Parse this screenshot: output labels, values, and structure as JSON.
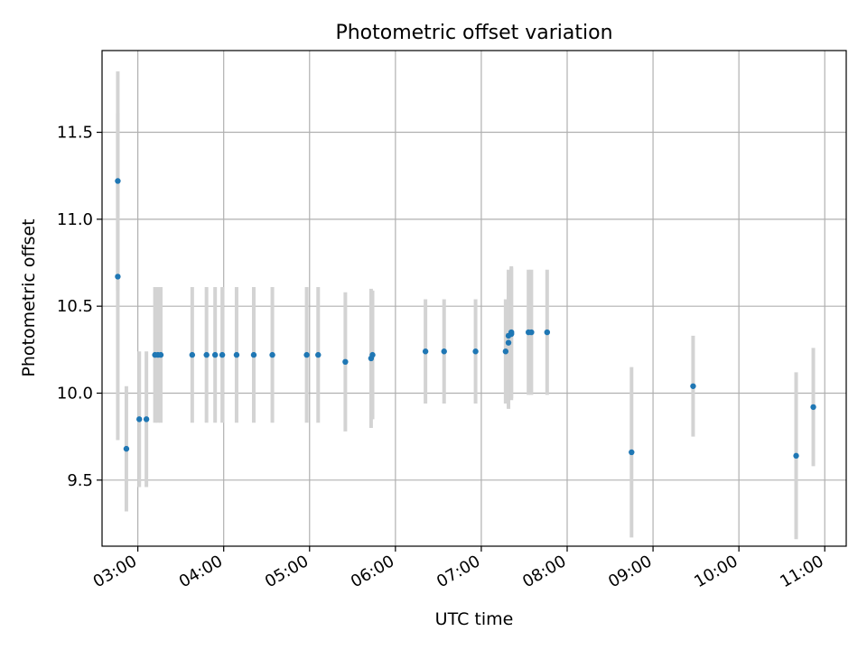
{
  "chart_data": {
    "type": "scatter",
    "title": "Photometric offset variation",
    "xlabel": "UTC time",
    "ylabel": "Photometric offset",
    "x_axis": "time",
    "xlim": [
      "02:35",
      "11:15"
    ],
    "ylim": [
      9.12,
      11.97
    ],
    "x_ticks": [
      "03:00",
      "04:00",
      "05:00",
      "06:00",
      "07:00",
      "08:00",
      "09:00",
      "10:00",
      "11:00"
    ],
    "y_ticks": [
      9.5,
      10.0,
      10.5,
      11.0,
      11.5
    ],
    "y_tick_labels": [
      "9.5",
      "10.0",
      "10.5",
      "11.0",
      "11.5"
    ],
    "grid": true,
    "colors": {
      "points": "#1f77b4",
      "errorbars": "#d3d3d3",
      "grid": "#b0b0b0"
    },
    "series": [
      {
        "points": [
          {
            "x": "02:46",
            "y": 11.22,
            "err": 0.63
          },
          {
            "x": "02:46",
            "y": 10.67,
            "err": 0.94
          },
          {
            "x": "02:52",
            "y": 9.68,
            "err": 0.36
          },
          {
            "x": "03:01",
            "y": 9.85,
            "err": 0.39
          },
          {
            "x": "03:06",
            "y": 9.85,
            "err": 0.39
          },
          {
            "x": "03:12",
            "y": 10.22,
            "err": 0.39
          },
          {
            "x": "03:14",
            "y": 10.22,
            "err": 0.39
          },
          {
            "x": "03:16",
            "y": 10.22,
            "err": 0.39
          },
          {
            "x": "03:38",
            "y": 10.22,
            "err": 0.39
          },
          {
            "x": "03:48",
            "y": 10.22,
            "err": 0.39
          },
          {
            "x": "03:54",
            "y": 10.22,
            "err": 0.39
          },
          {
            "x": "03:59",
            "y": 10.22,
            "err": 0.39
          },
          {
            "x": "04:09",
            "y": 10.22,
            "err": 0.39
          },
          {
            "x": "04:21",
            "y": 10.22,
            "err": 0.39
          },
          {
            "x": "04:34",
            "y": 10.22,
            "err": 0.39
          },
          {
            "x": "04:58",
            "y": 10.22,
            "err": 0.39
          },
          {
            "x": "05:06",
            "y": 10.22,
            "err": 0.39
          },
          {
            "x": "05:25",
            "y": 10.18,
            "err": 0.4
          },
          {
            "x": "05:43",
            "y": 10.2,
            "err": 0.4
          },
          {
            "x": "05:44",
            "y": 10.22,
            "err": 0.37
          },
          {
            "x": "06:21",
            "y": 10.24,
            "err": 0.3
          },
          {
            "x": "06:34",
            "y": 10.24,
            "err": 0.3
          },
          {
            "x": "06:56",
            "y": 10.24,
            "err": 0.3
          },
          {
            "x": "07:17",
            "y": 10.24,
            "err": 0.3
          },
          {
            "x": "07:19",
            "y": 10.29,
            "err": 0.38
          },
          {
            "x": "07:19",
            "y": 10.33,
            "err": 0.38
          },
          {
            "x": "07:21",
            "y": 10.34,
            "err": 0.38
          },
          {
            "x": "07:21",
            "y": 10.35,
            "err": 0.38
          },
          {
            "x": "07:33",
            "y": 10.35,
            "err": 0.36
          },
          {
            "x": "07:35",
            "y": 10.35,
            "err": 0.36
          },
          {
            "x": "07:46",
            "y": 10.35,
            "err": 0.36
          },
          {
            "x": "08:45",
            "y": 9.66,
            "err": 0.49
          },
          {
            "x": "09:28",
            "y": 10.04,
            "err": 0.29
          },
          {
            "x": "10:40",
            "y": 9.64,
            "err": 0.48
          },
          {
            "x": "10:52",
            "y": 9.92,
            "err": 0.34
          }
        ]
      }
    ]
  }
}
